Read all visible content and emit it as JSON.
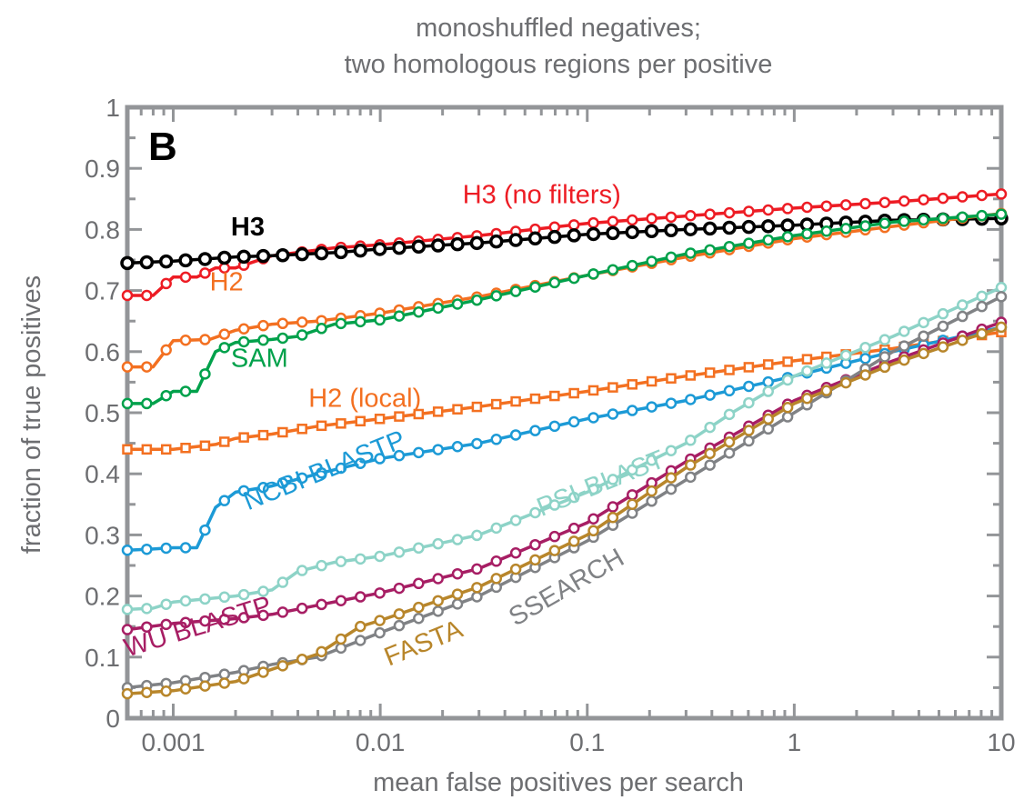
{
  "chart_data": {
    "type": "line",
    "title_lines": [
      "monoshuffled negatives;",
      "two homologous regions per positive"
    ],
    "panel_letter": "B",
    "xlabel": "mean false positives per search",
    "ylabel": "fraction of true positives",
    "x_scale": "log",
    "xlim": [
      0.0006,
      10
    ],
    "ylim": [
      0,
      1
    ],
    "x_ticks": [
      {
        "value": 0.001,
        "label": "0.001"
      },
      {
        "value": 0.01,
        "label": "0.01"
      },
      {
        "value": 0.1,
        "label": "0.1"
      },
      {
        "value": 1,
        "label": "1"
      },
      {
        "value": 10,
        "label": "10"
      }
    ],
    "y_ticks": [
      {
        "value": 0,
        "label": "0"
      },
      {
        "value": 0.1,
        "label": "0.1"
      },
      {
        "value": 0.2,
        "label": "0.2"
      },
      {
        "value": 0.3,
        "label": "0.3"
      },
      {
        "value": 0.4,
        "label": "0.4"
      },
      {
        "value": 0.5,
        "label": "0.5"
      },
      {
        "value": 0.6,
        "label": "0.6"
      },
      {
        "value": 0.7,
        "label": "0.7"
      },
      {
        "value": 0.8,
        "label": "0.8"
      },
      {
        "value": 0.9,
        "label": "0.9"
      },
      {
        "value": 1,
        "label": "1"
      }
    ],
    "grid": false,
    "legend": "inline labels",
    "series": [
      {
        "name": "H3 (no filters)",
        "color": "#ed1c24",
        "marker": "circle",
        "label_color": "#ed1c24",
        "points": [
          [
            0.0006,
            0.692
          ],
          [
            0.0008,
            0.692
          ],
          [
            0.001,
            0.722
          ],
          [
            0.0013,
            0.722
          ],
          [
            0.0016,
            0.737
          ],
          [
            0.002,
            0.737
          ],
          [
            0.003,
            0.757
          ],
          [
            0.006,
            0.77
          ],
          [
            0.01,
            0.775
          ],
          [
            0.03,
            0.79
          ],
          [
            0.1,
            0.81
          ],
          [
            0.3,
            0.822
          ],
          [
            1,
            0.835
          ],
          [
            3,
            0.845
          ],
          [
            10,
            0.858
          ]
        ]
      },
      {
        "name": "H3",
        "color": "#000000",
        "marker": "circle",
        "label_color": "#000000",
        "bold_label": true,
        "points": [
          [
            0.0006,
            0.745
          ],
          [
            0.001,
            0.748
          ],
          [
            0.002,
            0.755
          ],
          [
            0.003,
            0.757
          ],
          [
            0.006,
            0.762
          ],
          [
            0.01,
            0.768
          ],
          [
            0.03,
            0.778
          ],
          [
            0.1,
            0.792
          ],
          [
            0.3,
            0.8
          ],
          [
            1,
            0.807
          ],
          [
            3,
            0.815
          ],
          [
            10,
            0.818
          ]
        ]
      },
      {
        "name": "H2",
        "color": "#f37021",
        "marker": "circle",
        "label_color": "#f37021",
        "points": [
          [
            0.0006,
            0.575
          ],
          [
            0.0008,
            0.575
          ],
          [
            0.001,
            0.618
          ],
          [
            0.0015,
            0.62
          ],
          [
            0.002,
            0.635
          ],
          [
            0.003,
            0.645
          ],
          [
            0.005,
            0.65
          ],
          [
            0.01,
            0.663
          ],
          [
            0.03,
            0.69
          ],
          [
            0.1,
            0.725
          ],
          [
            0.3,
            0.755
          ],
          [
            1,
            0.785
          ],
          [
            3,
            0.805
          ],
          [
            10,
            0.826
          ]
        ]
      },
      {
        "name": "SAM",
        "color": "#00a14b",
        "marker": "circle",
        "label_color": "#00a14b",
        "points": [
          [
            0.0006,
            0.515
          ],
          [
            0.0008,
            0.515
          ],
          [
            0.001,
            0.535
          ],
          [
            0.0013,
            0.535
          ],
          [
            0.0016,
            0.6
          ],
          [
            0.002,
            0.615
          ],
          [
            0.003,
            0.62
          ],
          [
            0.004,
            0.625
          ],
          [
            0.006,
            0.645
          ],
          [
            0.01,
            0.652
          ],
          [
            0.03,
            0.685
          ],
          [
            0.1,
            0.725
          ],
          [
            0.3,
            0.76
          ],
          [
            1,
            0.79
          ],
          [
            3,
            0.812
          ],
          [
            10,
            0.825
          ]
        ]
      },
      {
        "name": "H2 (local)",
        "color": "#f37021",
        "marker": "square",
        "label_color": "#f37021",
        "points": [
          [
            0.0006,
            0.44
          ],
          [
            0.001,
            0.44
          ],
          [
            0.0016,
            0.448
          ],
          [
            0.002,
            0.458
          ],
          [
            0.003,
            0.465
          ],
          [
            0.005,
            0.478
          ],
          [
            0.01,
            0.49
          ],
          [
            0.03,
            0.51
          ],
          [
            0.1,
            0.535
          ],
          [
            0.3,
            0.56
          ],
          [
            1,
            0.585
          ],
          [
            3,
            0.605
          ],
          [
            10,
            0.632
          ]
        ]
      },
      {
        "name": "NCBI BLASTP",
        "color": "#1c9ad6",
        "marker": "circle",
        "label_color": "#1c9ad6",
        "points": [
          [
            0.0006,
            0.275
          ],
          [
            0.0008,
            0.277
          ],
          [
            0.001,
            0.279
          ],
          [
            0.0013,
            0.279
          ],
          [
            0.0016,
            0.345
          ],
          [
            0.002,
            0.37
          ],
          [
            0.003,
            0.38
          ],
          [
            0.005,
            0.4
          ],
          [
            0.01,
            0.425
          ],
          [
            0.03,
            0.45
          ],
          [
            0.1,
            0.49
          ],
          [
            0.3,
            0.52
          ],
          [
            1,
            0.56
          ],
          [
            3,
            0.6
          ],
          [
            10,
            0.64
          ]
        ]
      },
      {
        "name": "PSI-BLAST",
        "color": "#8dd3c7",
        "marker": "circle",
        "label_color": "#8dd3c7",
        "points": [
          [
            0.0006,
            0.178
          ],
          [
            0.0008,
            0.18
          ],
          [
            0.001,
            0.19
          ],
          [
            0.002,
            0.2
          ],
          [
            0.003,
            0.21
          ],
          [
            0.004,
            0.24
          ],
          [
            0.006,
            0.255
          ],
          [
            0.01,
            0.265
          ],
          [
            0.03,
            0.3
          ],
          [
            0.1,
            0.37
          ],
          [
            0.3,
            0.45
          ],
          [
            0.5,
            0.5
          ],
          [
            1,
            0.56
          ],
          [
            3,
            0.625
          ],
          [
            10,
            0.705
          ]
        ]
      },
      {
        "name": "WU BLASTP",
        "color": "#a71e64",
        "marker": "circle",
        "label_color": "#a71e64",
        "points": [
          [
            0.0006,
            0.145
          ],
          [
            0.001,
            0.155
          ],
          [
            0.002,
            0.163
          ],
          [
            0.003,
            0.17
          ],
          [
            0.005,
            0.185
          ],
          [
            0.01,
            0.205
          ],
          [
            0.03,
            0.245
          ],
          [
            0.1,
            0.32
          ],
          [
            0.3,
            0.42
          ],
          [
            1,
            0.52
          ],
          [
            3,
            0.585
          ],
          [
            10,
            0.648
          ]
        ]
      },
      {
        "name": "SSEARCH",
        "color": "#808285",
        "marker": "circle",
        "label_color": "#808285",
        "points": [
          [
            0.0006,
            0.05
          ],
          [
            0.001,
            0.058
          ],
          [
            0.002,
            0.075
          ],
          [
            0.003,
            0.088
          ],
          [
            0.005,
            0.1
          ],
          [
            0.01,
            0.14
          ],
          [
            0.03,
            0.2
          ],
          [
            0.1,
            0.29
          ],
          [
            0.3,
            0.39
          ],
          [
            1,
            0.5
          ],
          [
            3,
            0.6
          ],
          [
            10,
            0.69
          ]
        ]
      },
      {
        "name": "FASTA",
        "color": "#b8862b",
        "marker": "circle",
        "label_color": "#b8862b",
        "points": [
          [
            0.0006,
            0.04
          ],
          [
            0.001,
            0.045
          ],
          [
            0.002,
            0.06
          ],
          [
            0.003,
            0.08
          ],
          [
            0.005,
            0.105
          ],
          [
            0.008,
            0.15
          ],
          [
            0.01,
            0.16
          ],
          [
            0.03,
            0.215
          ],
          [
            0.1,
            0.3
          ],
          [
            0.3,
            0.41
          ],
          [
            1,
            0.515
          ],
          [
            3,
            0.58
          ],
          [
            10,
            0.64
          ]
        ]
      }
    ],
    "annotations": [
      {
        "text": "H3 (no filters)",
        "x": 0.025,
        "y": 0.843
      },
      {
        "text": "H3",
        "x": 0.0019,
        "y": 0.79
      },
      {
        "text": "H2",
        "x": 0.0015,
        "y": 0.7
      },
      {
        "text": "SAM",
        "x": 0.0019,
        "y": 0.575
      },
      {
        "text": "H2 (local)",
        "x": 0.0045,
        "y": 0.51
      },
      {
        "text": "NCBI BLASTP",
        "x": 0.0023,
        "y": 0.34
      },
      {
        "text": "PSI-BLAST",
        "x": 0.06,
        "y": 0.33
      },
      {
        "text": "WU BLASTP",
        "x": 0.0006,
        "y": 0.1
      },
      {
        "text": "FASTA",
        "x": 0.011,
        "y": 0.085
      },
      {
        "text": "SSEARCH",
        "x": 0.045,
        "y": 0.15
      }
    ]
  }
}
